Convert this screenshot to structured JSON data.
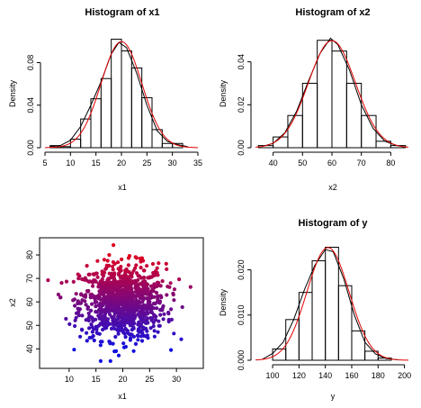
{
  "colors": {
    "density_line": "#000000",
    "normal_curve": "#e00000",
    "scatter_low": "#1010e0",
    "scatter_high": "#e00020"
  },
  "chart_data": [
    {
      "id": "hx1",
      "type": "bar",
      "title": "Histogram of x1",
      "xlabel": "x1",
      "ylabel": "Density",
      "xlim": [
        5,
        35
      ],
      "ylim": [
        0,
        0.105
      ],
      "xticks": [
        5,
        10,
        15,
        20,
        25,
        30,
        35
      ],
      "yticks": [
        0.0,
        0.04,
        0.08
      ],
      "ytick_labels": [
        "0.00",
        "0.04",
        "0.08"
      ],
      "bin_edges": [
        6,
        8,
        10,
        12,
        14,
        16,
        18,
        20,
        22,
        24,
        26,
        28,
        30,
        32
      ],
      "values": [
        0.002,
        0.001,
        0.008,
        0.027,
        0.046,
        0.065,
        0.102,
        0.091,
        0.075,
        0.047,
        0.017,
        0.004,
        0.004
      ],
      "normal": {
        "mean": 20,
        "sd": 4
      },
      "density": [
        [
          6,
          0.001
        ],
        [
          8,
          0.002
        ],
        [
          10,
          0.007
        ],
        [
          12,
          0.02
        ],
        [
          14,
          0.04
        ],
        [
          16,
          0.062
        ],
        [
          18,
          0.088
        ],
        [
          19.5,
          0.099
        ],
        [
          21,
          0.094
        ],
        [
          23,
          0.07
        ],
        [
          25,
          0.04
        ],
        [
          27,
          0.016
        ],
        [
          29,
          0.006
        ],
        [
          31,
          0.003
        ],
        [
          33,
          0.001
        ]
      ]
    },
    {
      "id": "hx2",
      "type": "bar",
      "title": "Histogram of x2",
      "xlabel": "x2",
      "ylabel": "Density",
      "xlim": [
        34,
        86
      ],
      "ylim": [
        0,
        0.052
      ],
      "xticks": [
        40,
        50,
        60,
        70,
        80
      ],
      "yticks": [
        0.0,
        0.02,
        0.04
      ],
      "ytick_labels": [
        "0.00",
        "0.02",
        "0.04"
      ],
      "bin_edges": [
        35,
        40,
        45,
        50,
        55,
        60,
        65,
        70,
        75,
        80,
        85
      ],
      "values": [
        0.001,
        0.005,
        0.015,
        0.03,
        0.05,
        0.045,
        0.03,
        0.015,
        0.003,
        0.001
      ],
      "normal": {
        "mean": 60,
        "sd": 8
      },
      "density": [
        [
          36,
          0.0005
        ],
        [
          40,
          0.002
        ],
        [
          44,
          0.007
        ],
        [
          48,
          0.017
        ],
        [
          52,
          0.031
        ],
        [
          56,
          0.044
        ],
        [
          59.5,
          0.051
        ],
        [
          62,
          0.048
        ],
        [
          66,
          0.036
        ],
        [
          70,
          0.02
        ],
        [
          74,
          0.009
        ],
        [
          78,
          0.003
        ],
        [
          82,
          0.001
        ],
        [
          85,
          0.0003
        ]
      ]
    },
    {
      "id": "scatter",
      "type": "scatter",
      "title": "",
      "xlabel": "x1",
      "ylabel": "x2",
      "xlim": [
        5.5,
        34
      ],
      "ylim": [
        34,
        85
      ],
      "xticks": [
        10,
        15,
        20,
        25,
        30
      ],
      "yticks": [
        40,
        50,
        60,
        70,
        80
      ],
      "n_points": 1000,
      "x_mean": 20,
      "x_sd": 4,
      "y_mean": 60,
      "y_sd": 8,
      "color_by": "x2"
    },
    {
      "id": "hy",
      "type": "bar",
      "title": "Histogram of y",
      "xlabel": "y",
      "ylabel": "Density",
      "xlim": [
        87,
        203
      ],
      "ylim": [
        0,
        0.0255
      ],
      "xticks": [
        100,
        120,
        140,
        160,
        180,
        200
      ],
      "yticks": [
        0.0,
        0.01,
        0.02
      ],
      "ytick_labels": [
        "0.000",
        "0.010",
        "0.020"
      ],
      "bin_edges": [
        100,
        110,
        120,
        130,
        140,
        150,
        160,
        170,
        180,
        190
      ],
      "values": [
        0.0025,
        0.009,
        0.015,
        0.022,
        0.025,
        0.0165,
        0.0065,
        0.002,
        0.0005
      ],
      "normal": {
        "mean": 142,
        "sd": 16
      },
      "density": [
        [
          92,
          0.0002
        ],
        [
          100,
          0.0015
        ],
        [
          108,
          0.004
        ],
        [
          116,
          0.009
        ],
        [
          124,
          0.0155
        ],
        [
          132,
          0.021
        ],
        [
          140,
          0.0245
        ],
        [
          146,
          0.024
        ],
        [
          154,
          0.018
        ],
        [
          162,
          0.01
        ],
        [
          170,
          0.004
        ],
        [
          178,
          0.0014
        ],
        [
          186,
          0.0004
        ],
        [
          195,
          0.0001
        ]
      ]
    }
  ]
}
